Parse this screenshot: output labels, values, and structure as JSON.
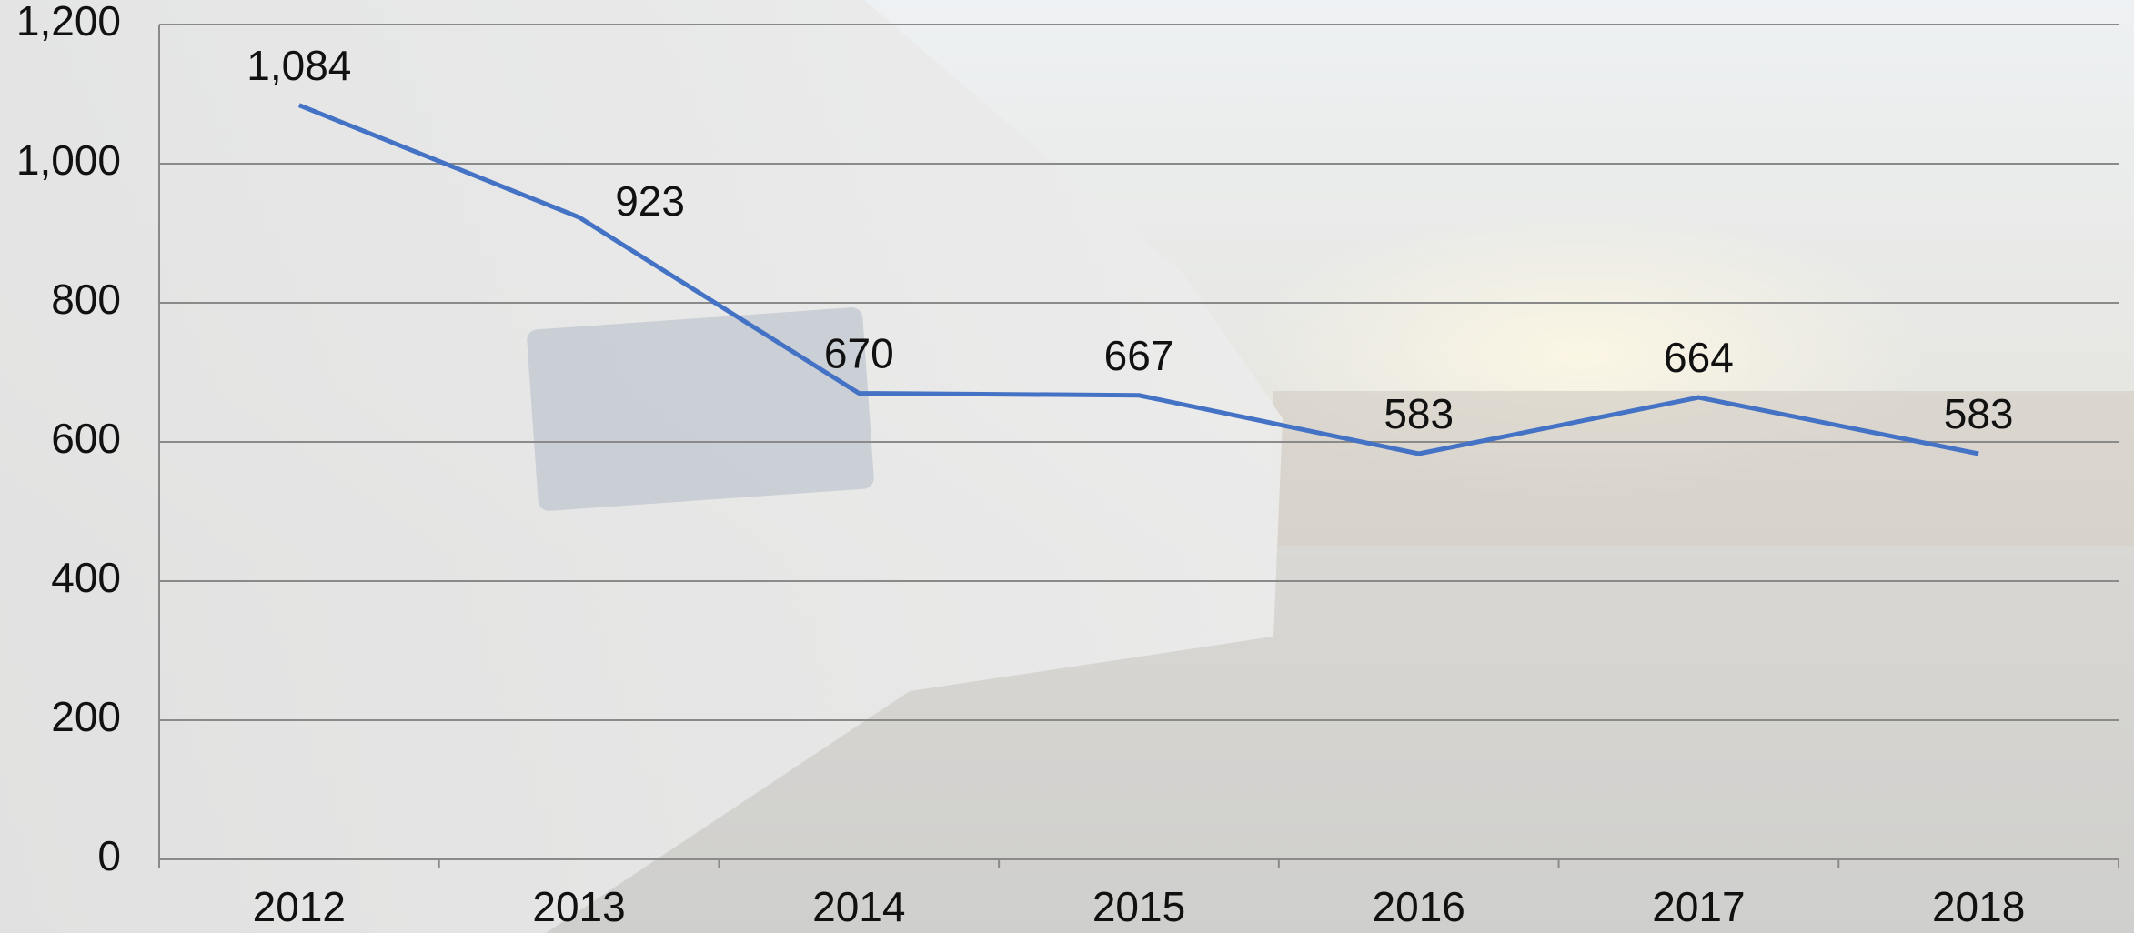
{
  "chart_data": {
    "type": "line",
    "categories": [
      "2012",
      "2013",
      "2014",
      "2015",
      "2016",
      "2017",
      "2018"
    ],
    "values": [
      1084,
      923,
      670,
      667,
      583,
      664,
      583
    ],
    "value_labels": [
      "1,084",
      "923",
      "670",
      "667",
      "583",
      "664",
      "583"
    ],
    "color": "#4472c4",
    "ylim": [
      0,
      1200
    ],
    "yticks": [
      0,
      200,
      400,
      600,
      800,
      {
        "value": 1000,
        "label": "1,000"
      },
      {
        "value": 1200,
        "label": "1,200"
      }
    ],
    "grid": true
  }
}
